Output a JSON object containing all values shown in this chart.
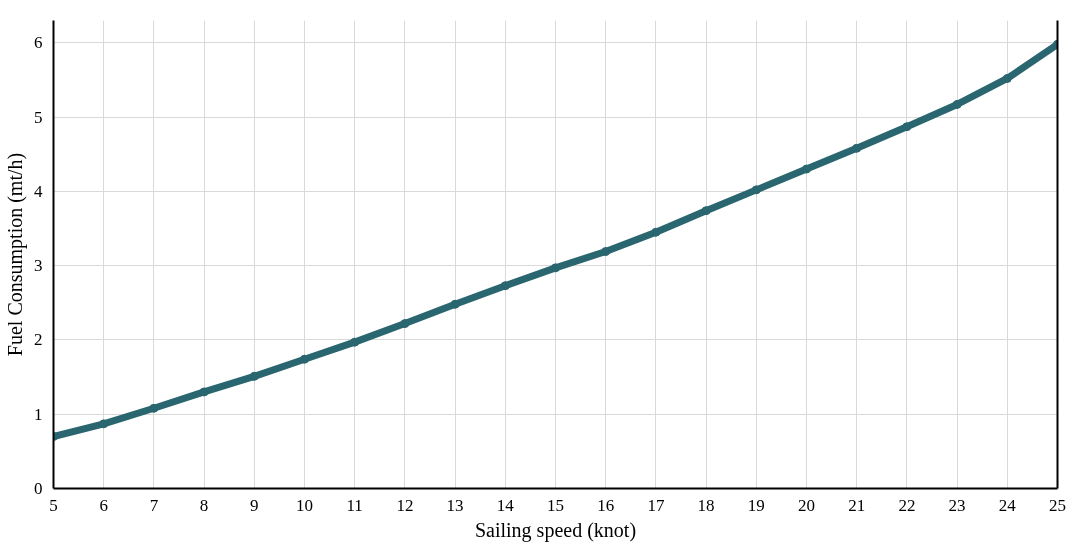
{
  "chart_data": {
    "type": "line",
    "xlabel": "Sailing speed (knot)",
    "ylabel": "Fuel Consumption (mt/h)",
    "x": [
      5,
      6,
      7,
      8,
      9,
      10,
      11,
      12,
      13,
      14,
      15,
      16,
      17,
      18,
      19,
      20,
      21,
      22,
      23,
      24,
      25
    ],
    "series": [
      {
        "color": "#2a6670",
        "values": [
          0.7,
          0.87,
          1.08,
          1.3,
          1.51,
          1.74,
          1.97,
          2.22,
          2.48,
          2.73,
          2.97,
          3.19,
          3.45,
          3.74,
          4.02,
          4.3,
          4.58,
          4.87,
          5.17,
          5.52,
          5.98
        ]
      }
    ],
    "xlim": [
      5,
      25
    ],
    "xticks": [
      5,
      6,
      7,
      8,
      9,
      10,
      11,
      12,
      13,
      14,
      15,
      16,
      17,
      18,
      19,
      20,
      21,
      22,
      23,
      24,
      25
    ],
    "ylim": [
      0,
      6.3
    ],
    "yticks": [
      0,
      1,
      2,
      3,
      4,
      5,
      6
    ],
    "grid": true,
    "marker": "circle",
    "line_style": "solid"
  }
}
